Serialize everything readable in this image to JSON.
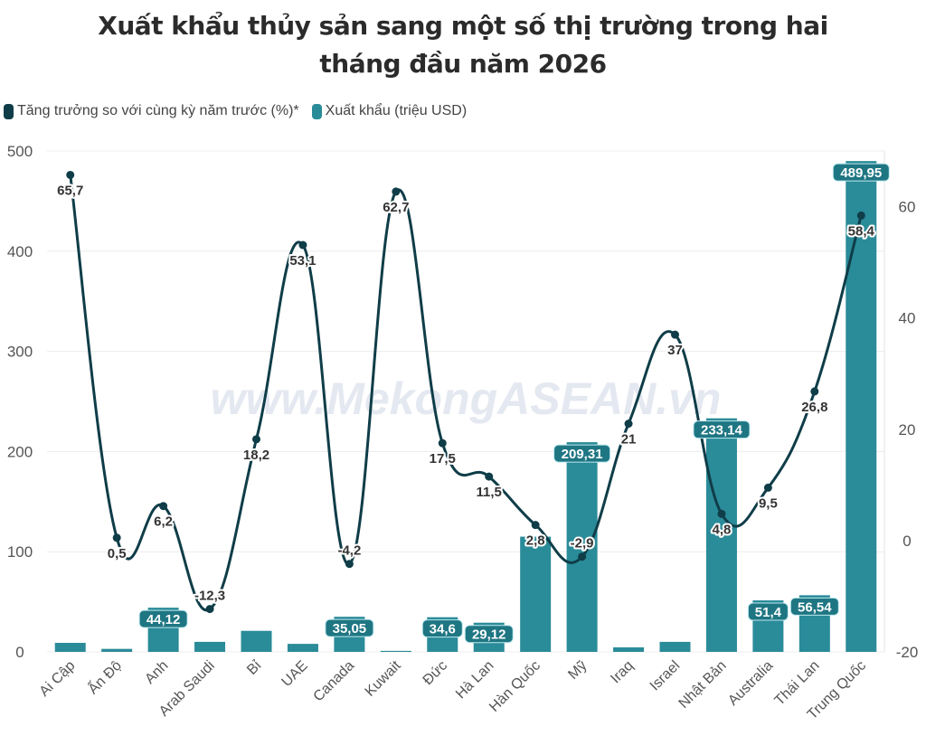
{
  "chart_data": {
    "type": "bar+line",
    "title_line1": "Xuất khẩu thủy sản sang một số thị trường trong hai",
    "title_line2": "tháng đầu năm 2026",
    "watermark": "www.MekongASEAN.vn",
    "legend_position": "top-left",
    "categories": [
      "Ai Cập",
      "Ấn Độ",
      "Anh",
      "Arab Saudi",
      "Bỉ",
      "UAE",
      "Canada",
      "Kuwait",
      "Đức",
      "Hà Lan",
      "Hàn Quốc",
      "Mỹ",
      "Iraq",
      "Israel",
      "Nhật Bản",
      "Australia",
      "Thái Lan",
      "Trung Quốc"
    ],
    "series": [
      {
        "name": "Tăng trưởng so với cùng kỳ năm trước (%)*",
        "type": "line",
        "axis": "right",
        "color": "#0f3d48",
        "values": [
          65.7,
          0.5,
          6.2,
          -12.3,
          18.2,
          53.1,
          -4.2,
          62.7,
          17.5,
          11.5,
          2.8,
          -2.9,
          21,
          37,
          4.8,
          9.5,
          26.8,
          58.4
        ],
        "labels": [
          "65,7",
          "0,5",
          "6,2",
          "-12,3",
          "18,2",
          "53,1",
          "-4,2",
          "62,7",
          "17,5",
          "11,5",
          "2,8",
          "-2,9",
          "21",
          "37",
          "4,8",
          "9,5",
          "26,8",
          "58,4"
        ]
      },
      {
        "name": "Xuất khẩu (triệu USD)",
        "type": "bar",
        "axis": "left",
        "color": "#2a8b99",
        "values": [
          9,
          3,
          44.12,
          10,
          21,
          8,
          35.05,
          1,
          34.6,
          29.12,
          115,
          209.31,
          4.5,
          10,
          233.14,
          51.4,
          56.54,
          489.95
        ],
        "labels": [
          null,
          null,
          "44,12",
          null,
          null,
          null,
          "35,05",
          null,
          "34,6",
          "29,12",
          null,
          "209,31",
          null,
          null,
          "233,14",
          "51,4",
          "56,54",
          "489,95"
        ]
      }
    ],
    "left_axis": {
      "range": [
        0,
        500
      ],
      "ticks": [
        "0",
        "100",
        "200",
        "300",
        "400",
        "500"
      ]
    },
    "right_axis": {
      "range": [
        -20,
        70
      ],
      "ticks": [
        "-20",
        "0",
        "20",
        "40",
        "60"
      ]
    },
    "grid": true
  }
}
